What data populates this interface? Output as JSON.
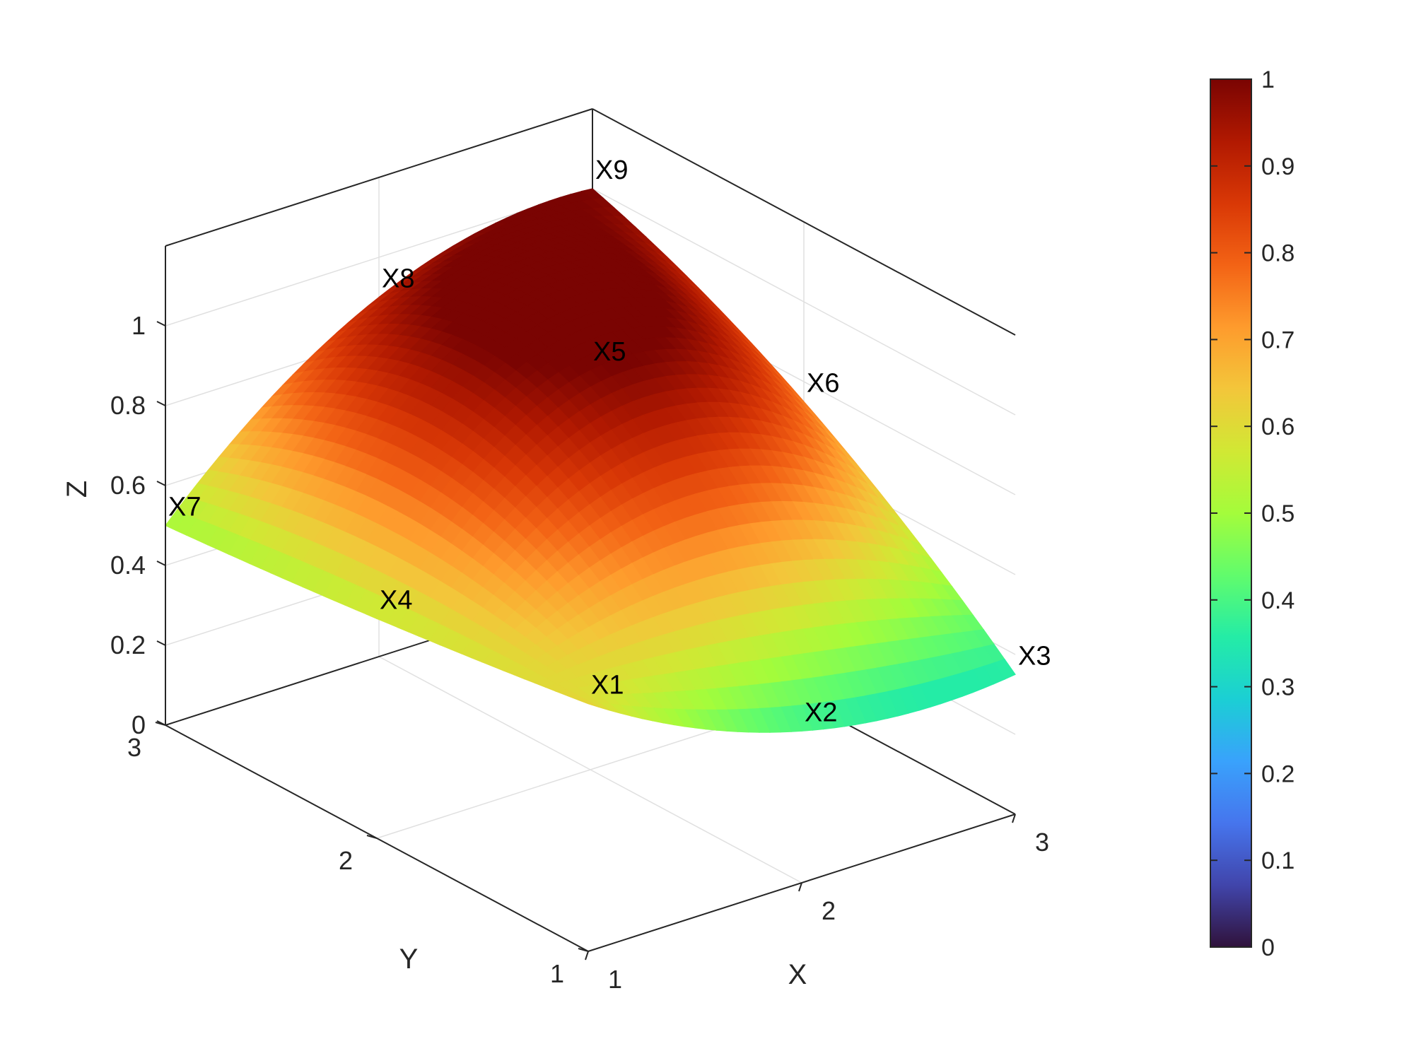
{
  "chart_data": {
    "type": "surface",
    "xlabel": "X",
    "ylabel": "Y",
    "zlabel": "Z",
    "xlim": [
      1,
      3
    ],
    "ylim": [
      1,
      3
    ],
    "zlim": [
      0,
      1.2
    ],
    "x_ticks": [
      "1",
      "2",
      "3"
    ],
    "y_ticks": [
      "1",
      "2",
      "3"
    ],
    "z_ticks": [
      "0",
      "0.2",
      "0.4",
      "0.6",
      "0.8",
      "1"
    ],
    "grid": true,
    "colormap": "turbo",
    "colorbar": {
      "placement": "right",
      "range": [
        0,
        1
      ],
      "ticks": [
        "0",
        "0.1",
        "0.2",
        "0.3",
        "0.4",
        "0.5",
        "0.6",
        "0.7",
        "0.8",
        "0.9",
        "1"
      ]
    },
    "points": [
      {
        "label": "X1",
        "x": 1,
        "y": 1,
        "z": 0.62
      },
      {
        "label": "X2",
        "x": 2,
        "y": 1,
        "z": 0.38
      },
      {
        "label": "X3",
        "x": 3,
        "y": 1,
        "z": 0.35
      },
      {
        "label": "X4",
        "x": 1,
        "y": 2,
        "z": 0.55
      },
      {
        "label": "X5",
        "x": 2,
        "y": 2,
        "z": 1.0
      },
      {
        "label": "X6",
        "x": 3,
        "y": 2,
        "z": 0.75
      },
      {
        "label": "X7",
        "x": 1,
        "y": 3,
        "z": 0.5
      },
      {
        "label": "X8",
        "x": 2,
        "y": 3,
        "z": 0.9
      },
      {
        "label": "X9",
        "x": 3,
        "y": 3,
        "z": 1.0
      }
    ]
  },
  "colors": {
    "axis": "#262626",
    "grid": "#e0e0e0",
    "turbo_stops": [
      "#30123b",
      "#4145ab",
      "#4675ed",
      "#39a2fc",
      "#1bcfd4",
      "#24eca6",
      "#61fc6c",
      "#a4fc3b",
      "#d1e834",
      "#f3c63a",
      "#fe9b2d",
      "#f36315",
      "#d93806",
      "#b11901",
      "#7a0402"
    ]
  }
}
